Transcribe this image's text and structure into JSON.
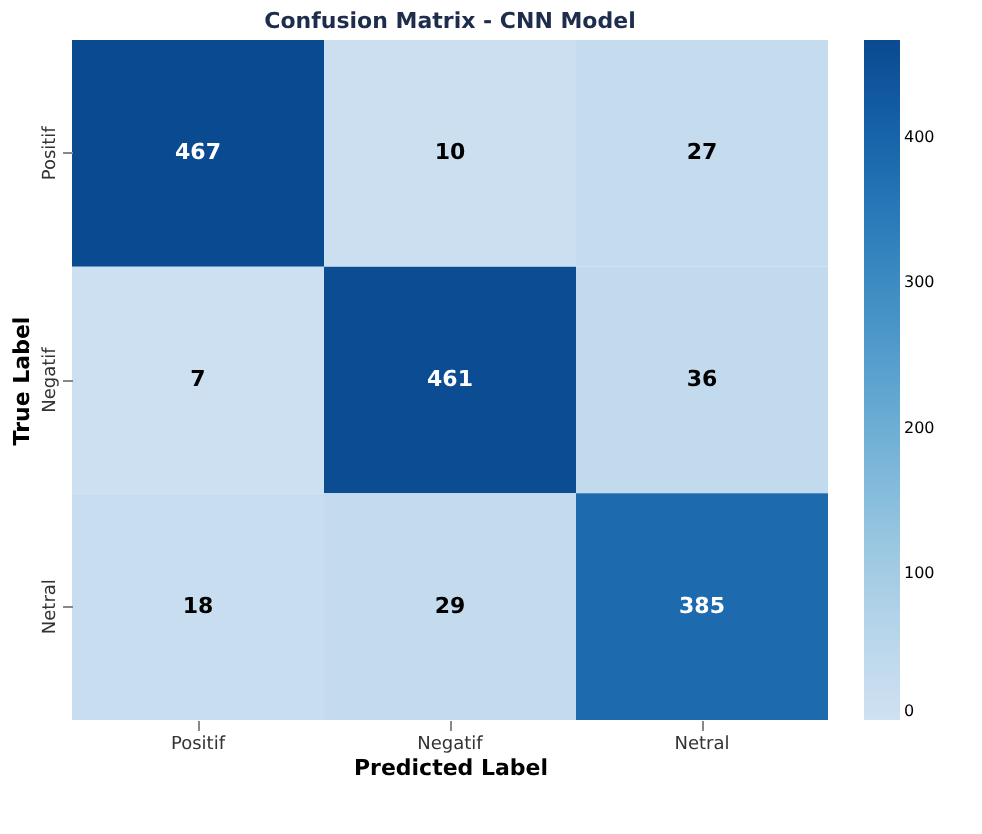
{
  "chart_data": {
    "type": "heatmap",
    "title": "Confusion Matrix - CNN Model",
    "xlabel": "Predicted Label",
    "ylabel": "True Label",
    "categories": [
      "Positif",
      "Negatif",
      "Netral"
    ],
    "y_categories": [
      "Positif",
      "Negatif",
      "Netral"
    ],
    "cells": [
      [
        467,
        10,
        27
      ],
      [
        7,
        461,
        36
      ],
      [
        18,
        29,
        385
      ]
    ],
    "data_labels": true,
    "clim": [
      0,
      467
    ],
    "cticks": [
      0,
      100,
      200,
      300,
      400
    ]
  }
}
